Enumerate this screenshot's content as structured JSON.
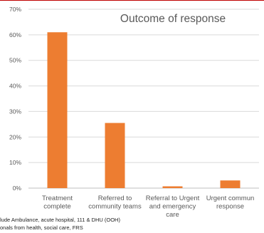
{
  "chart_data": {
    "type": "bar",
    "title": "Outcome of response",
    "xlabel": "",
    "ylabel": "",
    "categories": [
      [
        "Treatment",
        "complete"
      ],
      [
        "Referred to",
        "community teams"
      ],
      [
        "Referral to Urgent",
        "and emergency",
        "care"
      ],
      [
        "Urgent commun",
        "response"
      ]
    ],
    "values": [
      61,
      25.5,
      0.7,
      3
    ],
    "ylim": [
      0,
      70
    ],
    "yticks": [
      "0%",
      "10%",
      "20%",
      "30%",
      "40%",
      "50%",
      "60%",
      "70%"
    ],
    "grid": true,
    "legend": "none",
    "colors": {
      "bar": "#ED7D31",
      "grid": "#D9D9D9",
      "axis": "#BFBFBF",
      "text": "#595959",
      "frame": "#C00000"
    }
  },
  "footnotes": [
    "lude Ambulance, acute hospital, 111 & DHU (OOH)",
    "onals from health, social care, FRS"
  ]
}
